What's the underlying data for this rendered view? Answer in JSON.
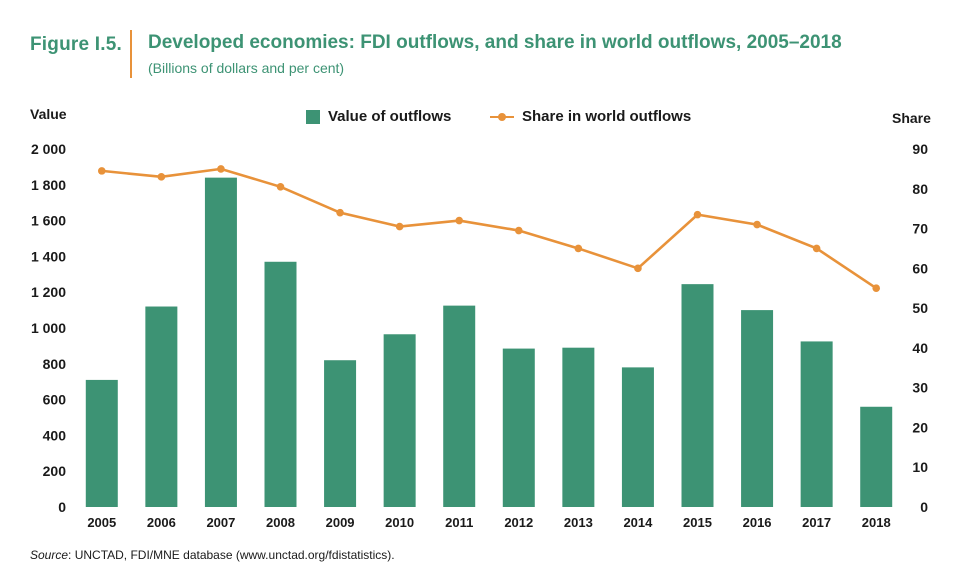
{
  "figure": {
    "label": "Figure I.5.",
    "title": "Developed economies: FDI outflows, and share in world outflows, 2005–2018",
    "subtitle": "(Billions of dollars and per cent)"
  },
  "source": {
    "prefix": "Source",
    "text": ": UNCTAD, FDI/MNE database (www.unctad.org/fdistatistics)."
  },
  "colors": {
    "bar": "#3d9374",
    "line": "#e8923a",
    "title": "#3d9374"
  },
  "chart_data": {
    "type": "bar",
    "categories": [
      "2005",
      "2006",
      "2007",
      "2008",
      "2009",
      "2010",
      "2011",
      "2012",
      "2013",
      "2014",
      "2015",
      "2016",
      "2017",
      "2018"
    ],
    "series": [
      {
        "name": "Value of outflows",
        "type": "bar",
        "axis": "left",
        "values": [
          710,
          1120,
          1840,
          1370,
          820,
          965,
          1125,
          885,
          890,
          780,
          1245,
          1100,
          925,
          560
        ]
      },
      {
        "name": "Share in world outflows",
        "type": "line",
        "axis": "right",
        "values": [
          84.5,
          83,
          85,
          80.5,
          74,
          70.5,
          72,
          69.5,
          65,
          60,
          73.5,
          71,
          65,
          55
        ]
      }
    ],
    "ylabel": "Value",
    "y2label": "Share",
    "ylim": [
      0,
      2000
    ],
    "y2lim": [
      0,
      90
    ],
    "yticks": [
      "0",
      "200",
      "400",
      "600",
      "800",
      "1 000",
      "1 200",
      "1 400",
      "1 600",
      "1 800",
      "2 000"
    ],
    "y2ticks": [
      "0",
      "10",
      "20",
      "30",
      "40",
      "50",
      "60",
      "70",
      "80",
      "90"
    ],
    "legend_position": "top",
    "grid": false
  }
}
